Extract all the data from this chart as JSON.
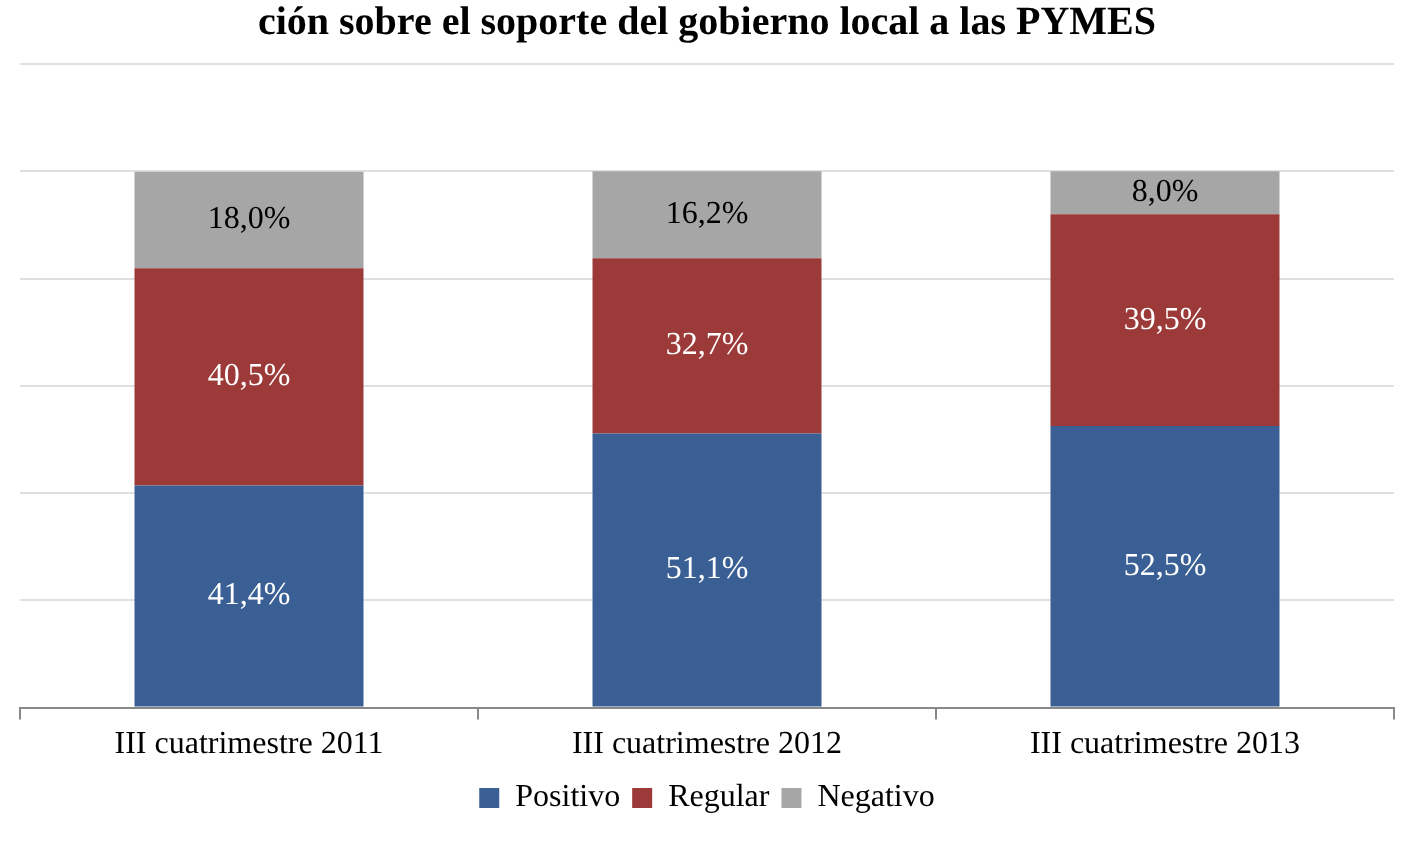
{
  "chart_data": {
    "type": "bar",
    "stacked": true,
    "title": "ción sobre el soporte del gobierno local a las PYMES",
    "categories": [
      "III cuatrimestre 2011",
      "III cuatrimestre 2012",
      "III cuatrimestre 2013"
    ],
    "series": [
      {
        "name": "Positivo",
        "color": "#3a5f94",
        "values": [
          41.4,
          51.1,
          52.5
        ],
        "value_labels": [
          "41,4%",
          "51,1%",
          "52,5%"
        ]
      },
      {
        "name": "Regular",
        "color": "#9b3a38",
        "values": [
          40.5,
          32.7,
          39.5
        ],
        "value_labels": [
          "40,5%",
          "32,7%",
          "39,5%"
        ]
      },
      {
        "name": "Negativo",
        "color": "#a6a6a6",
        "values": [
          18.0,
          16.2,
          8.0
        ],
        "value_labels": [
          "18,0%",
          "16,2%",
          "8,0%"
        ]
      }
    ],
    "ylim": [
      0,
      120
    ],
    "yticks": [
      {
        "value": 0,
        "label": null
      },
      {
        "value": 20,
        "label": null
      },
      {
        "value": 40,
        "label": null
      },
      {
        "value": 60,
        "label": null
      },
      {
        "value": 80,
        "label": null
      },
      {
        "value": 100,
        "label": null
      },
      {
        "value": 120,
        "label": null
      }
    ],
    "tick_labels": "x",
    "grid": "y",
    "legend": "bottom"
  }
}
